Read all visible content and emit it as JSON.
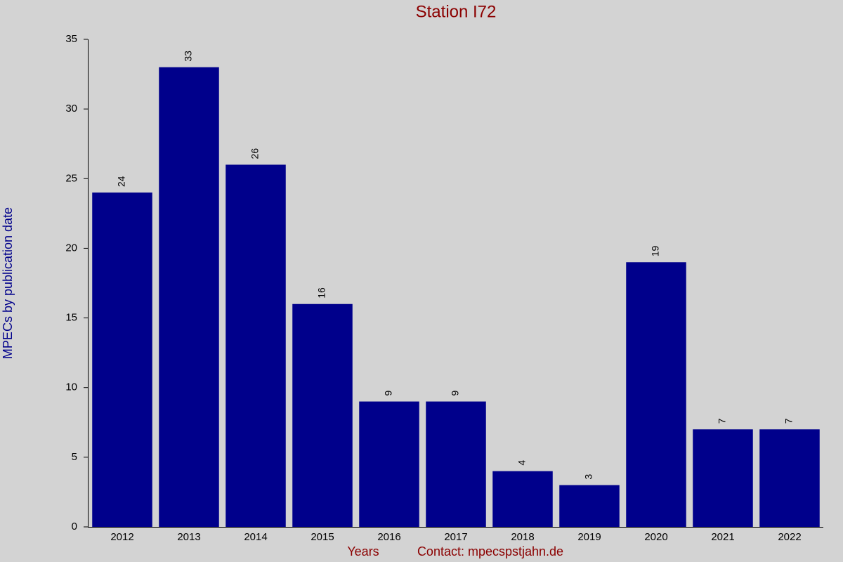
{
  "chart_data": {
    "type": "bar",
    "title": "Station I72",
    "x_label": "Years",
    "y_label": "MPECs by publication date",
    "annotation": "Contact: mpecspstjahn.de",
    "categories": [
      "2012",
      "2013",
      "2014",
      "2015",
      "2016",
      "2017",
      "2018",
      "2019",
      "2020",
      "2021",
      "2022"
    ],
    "values": [
      24,
      33,
      26,
      16,
      9,
      9,
      4,
      3,
      19,
      7,
      7
    ],
    "color": "#00008b",
    "ylim": [
      0,
      35
    ],
    "yticks": [
      0,
      5,
      10,
      15,
      20,
      25,
      30,
      35
    ],
    "grid": false
  }
}
